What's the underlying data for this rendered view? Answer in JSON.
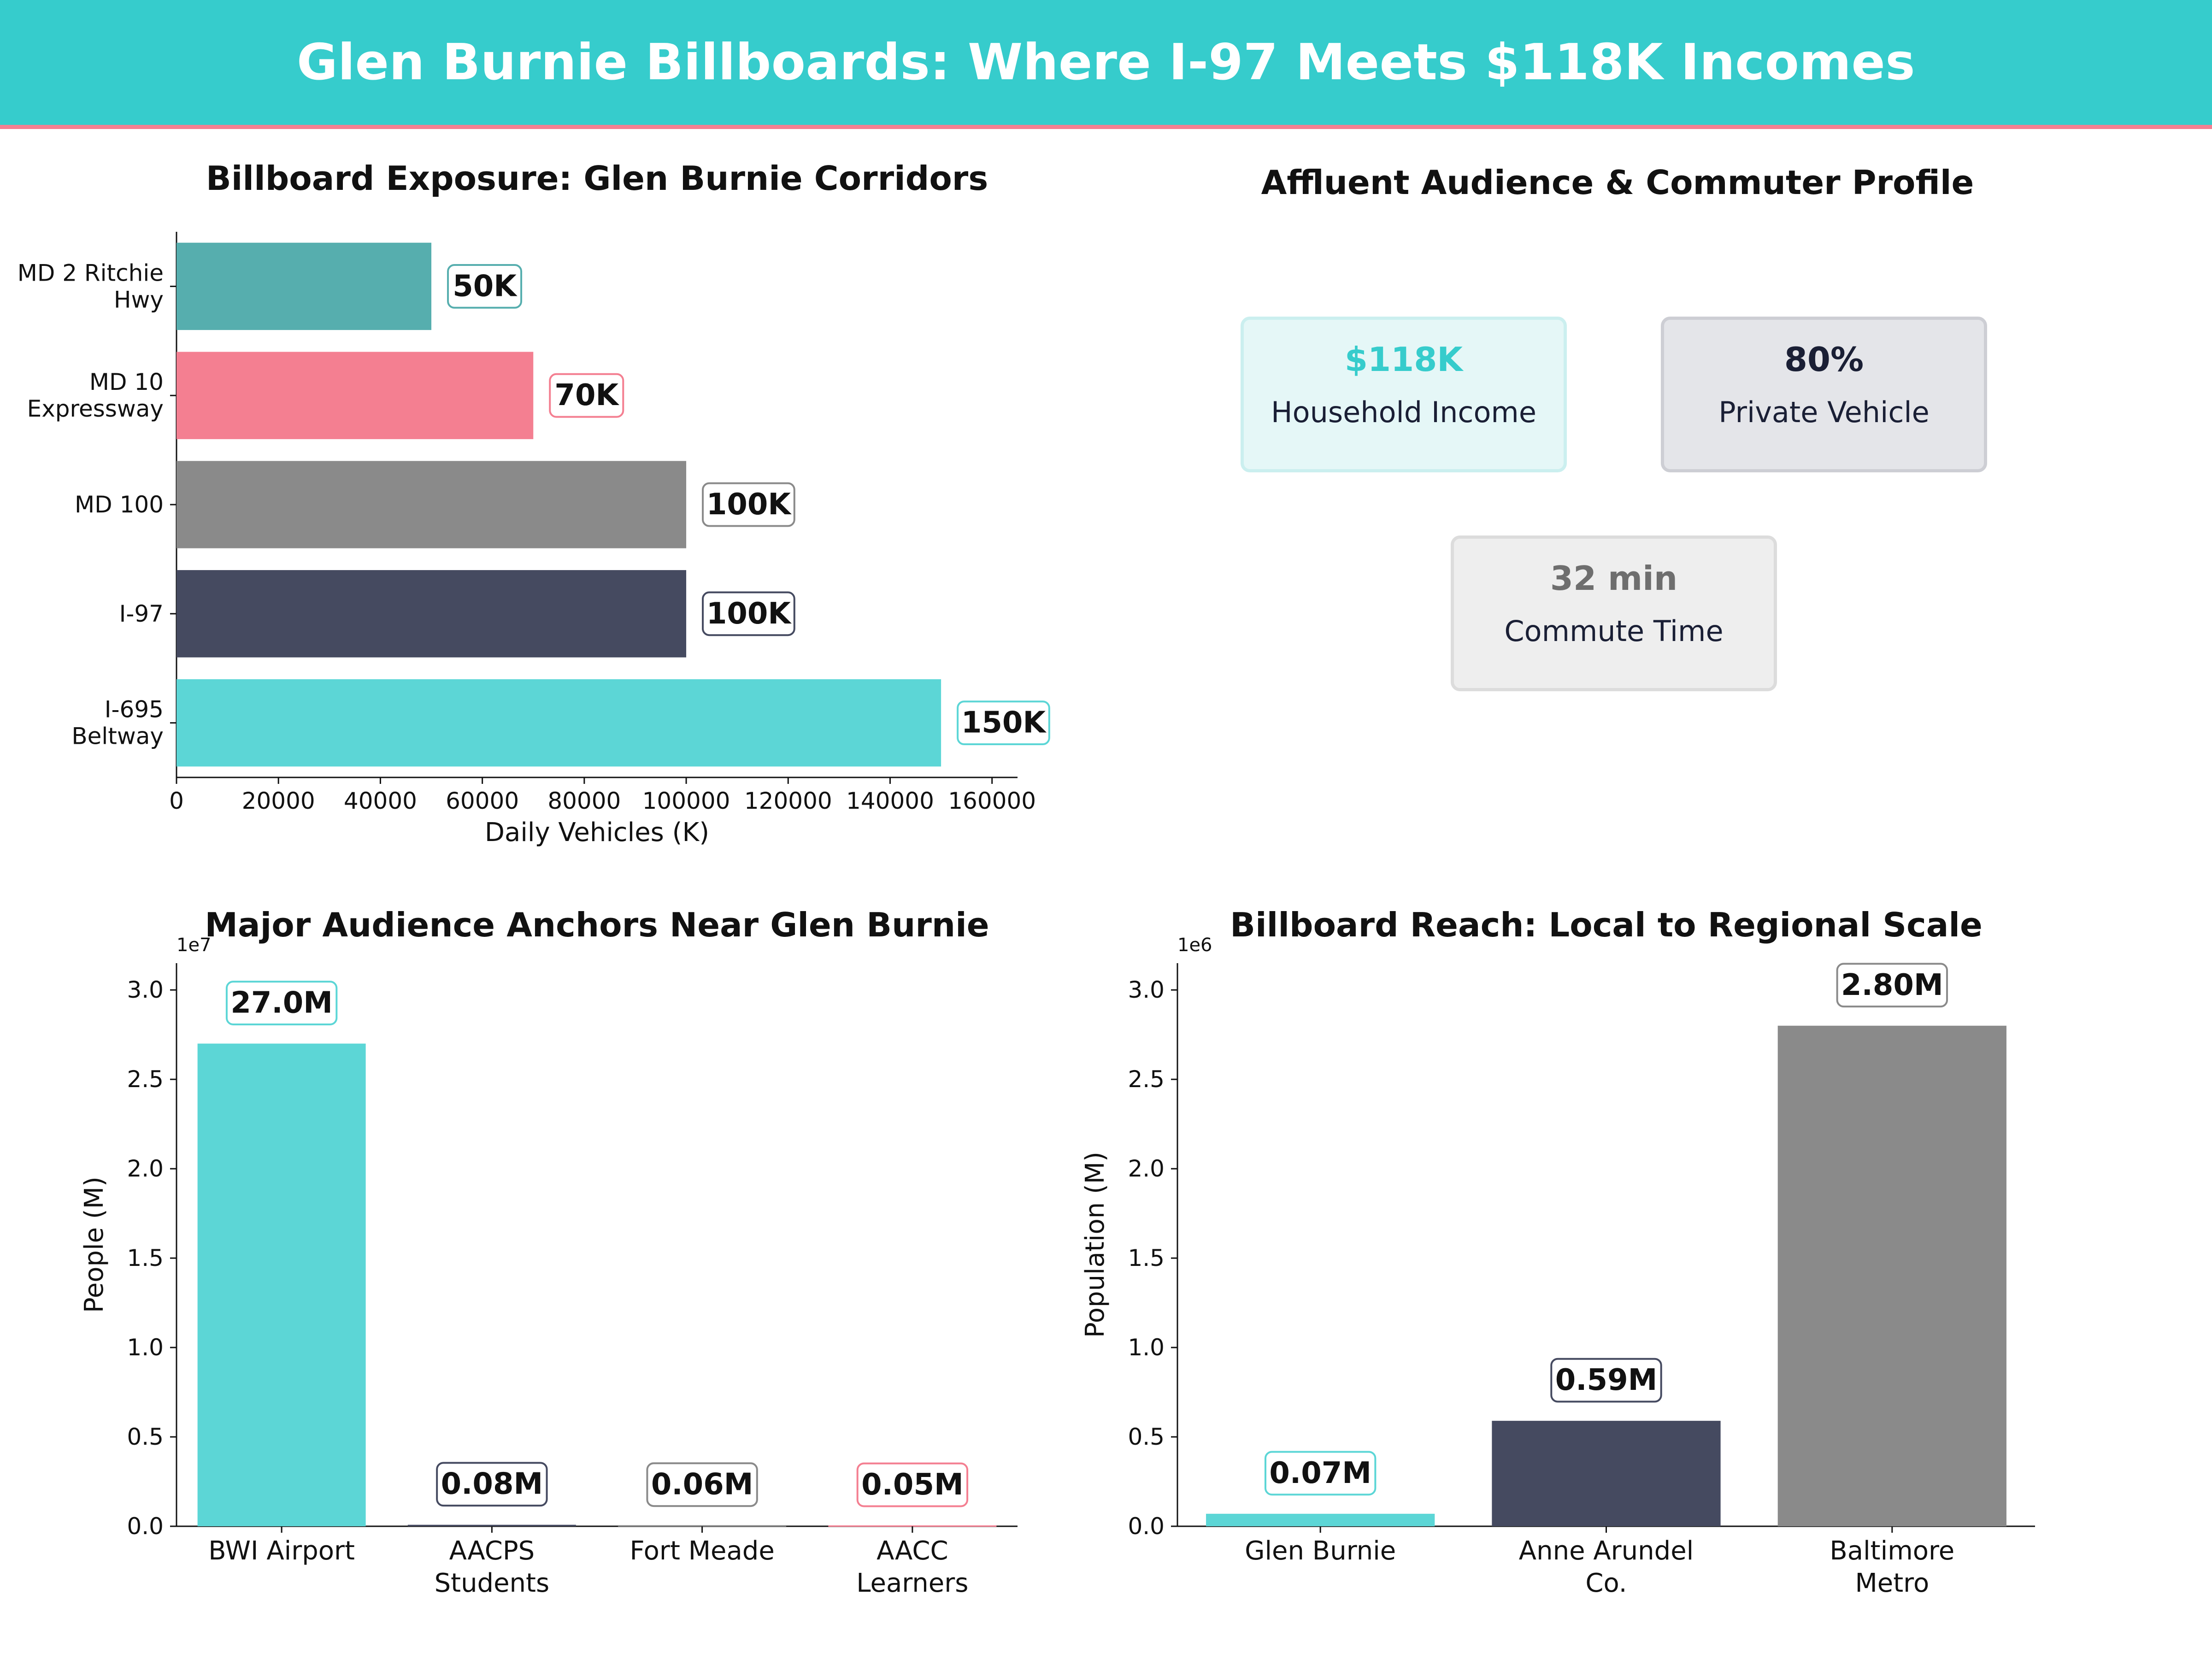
{
  "page_title": "Glen Burnie Billboards: Where I-97 Meets $118K Incomes",
  "colors": {
    "teal": "#36CCCC",
    "teal_bar": "#5CD6D6",
    "teal_dark": "#56AEAE",
    "pink": "#F47F91",
    "navy": "#454A60",
    "gray": "#8A8A8A",
    "dark_text": "#1A1F35"
  },
  "kpis": {
    "title": "Affluent Audience & Commuter Profile",
    "cards": [
      {
        "value": "$118K",
        "label": "Household Income",
        "value_color": "#36CCCC",
        "bg": "#E5F7F7",
        "border": "#CBEFEF"
      },
      {
        "value": "80%",
        "label": "Private Vehicle",
        "value_color": "#1A1F35",
        "bg": "#E4E5E9",
        "border": "#CDCED4"
      },
      {
        "value": "32 min",
        "label": "Commute Time",
        "value_color": "#6E6E6E",
        "bg": "#EEEEEE",
        "border": "#DCDCDC"
      }
    ]
  },
  "chart_data": [
    {
      "type": "bar",
      "orientation": "horizontal",
      "title": "Billboard Exposure: Glen Burnie Corridors",
      "xlabel": "Daily Vehicles (K)",
      "ylabel": "",
      "xlim": [
        0,
        165000
      ],
      "xticks": [
        0,
        20000,
        40000,
        60000,
        80000,
        100000,
        120000,
        140000,
        160000
      ],
      "categories": [
        [
          "MD 2 Ritchie",
          "Hwy"
        ],
        [
          "MD 10",
          "Expressway"
        ],
        [
          "MD 100"
        ],
        [
          "I-97"
        ],
        [
          "I-695",
          "Beltway"
        ]
      ],
      "values": [
        50000,
        70000,
        100000,
        100000,
        150000
      ],
      "data_labels": [
        "50K",
        "70K",
        "100K",
        "100K",
        "150K"
      ],
      "colors": [
        "#56AEAE",
        "#F47F91",
        "#8A8A8A",
        "#454A60",
        "#5CD6D6"
      ],
      "label_borders": [
        "#56AEAE",
        "#F47F91",
        "#8A8A8A",
        "#454A60",
        "#5CD6D6"
      ],
      "grid": false
    },
    {
      "type": "bar",
      "title": "Major Audience Anchors Near Glen Burnie",
      "xlabel": "",
      "ylabel": "People (M)",
      "offset_text": "1e7",
      "ylim": [
        0,
        31500000
      ],
      "yticks": [
        0,
        5000000,
        10000000,
        15000000,
        20000000,
        25000000,
        30000000
      ],
      "ytick_labels": [
        "0.0",
        "0.5",
        "1.0",
        "1.5",
        "2.0",
        "2.5",
        "3.0"
      ],
      "categories": [
        [
          "BWI Airport"
        ],
        [
          "AACPS",
          "Students"
        ],
        [
          "Fort Meade"
        ],
        [
          "AACC",
          "Learners"
        ]
      ],
      "values": [
        27000000,
        84000,
        60000,
        50000
      ],
      "data_labels": [
        "27.0M",
        "0.08M",
        "0.06M",
        "0.05M"
      ],
      "colors": [
        "#5CD6D6",
        "#454A60",
        "#8A8A8A",
        "#F47F91"
      ],
      "label_borders": [
        "#5CD6D6",
        "#454A60",
        "#8A8A8A",
        "#F47F91"
      ],
      "grid": false
    },
    {
      "type": "bar",
      "title": "Billboard Reach: Local to Regional Scale",
      "xlabel": "",
      "ylabel": "Population (M)",
      "offset_text": "1e6",
      "ylim": [
        0,
        3150000
      ],
      "yticks": [
        0,
        500000,
        1000000,
        1500000,
        2000000,
        2500000,
        3000000
      ],
      "ytick_labels": [
        "0.0",
        "0.5",
        "1.0",
        "1.5",
        "2.0",
        "2.5",
        "3.0"
      ],
      "categories": [
        [
          "Glen Burnie"
        ],
        [
          "Anne Arundel",
          "Co."
        ],
        [
          "Baltimore",
          "Metro"
        ]
      ],
      "values": [
        70000,
        590000,
        2800000
      ],
      "data_labels": [
        "0.07M",
        "0.59M",
        "2.80M"
      ],
      "colors": [
        "#5CD6D6",
        "#454A60",
        "#8A8A8A"
      ],
      "label_borders": [
        "#5CD6D6",
        "#454A60",
        "#8A8A8A"
      ],
      "grid": false
    }
  ]
}
